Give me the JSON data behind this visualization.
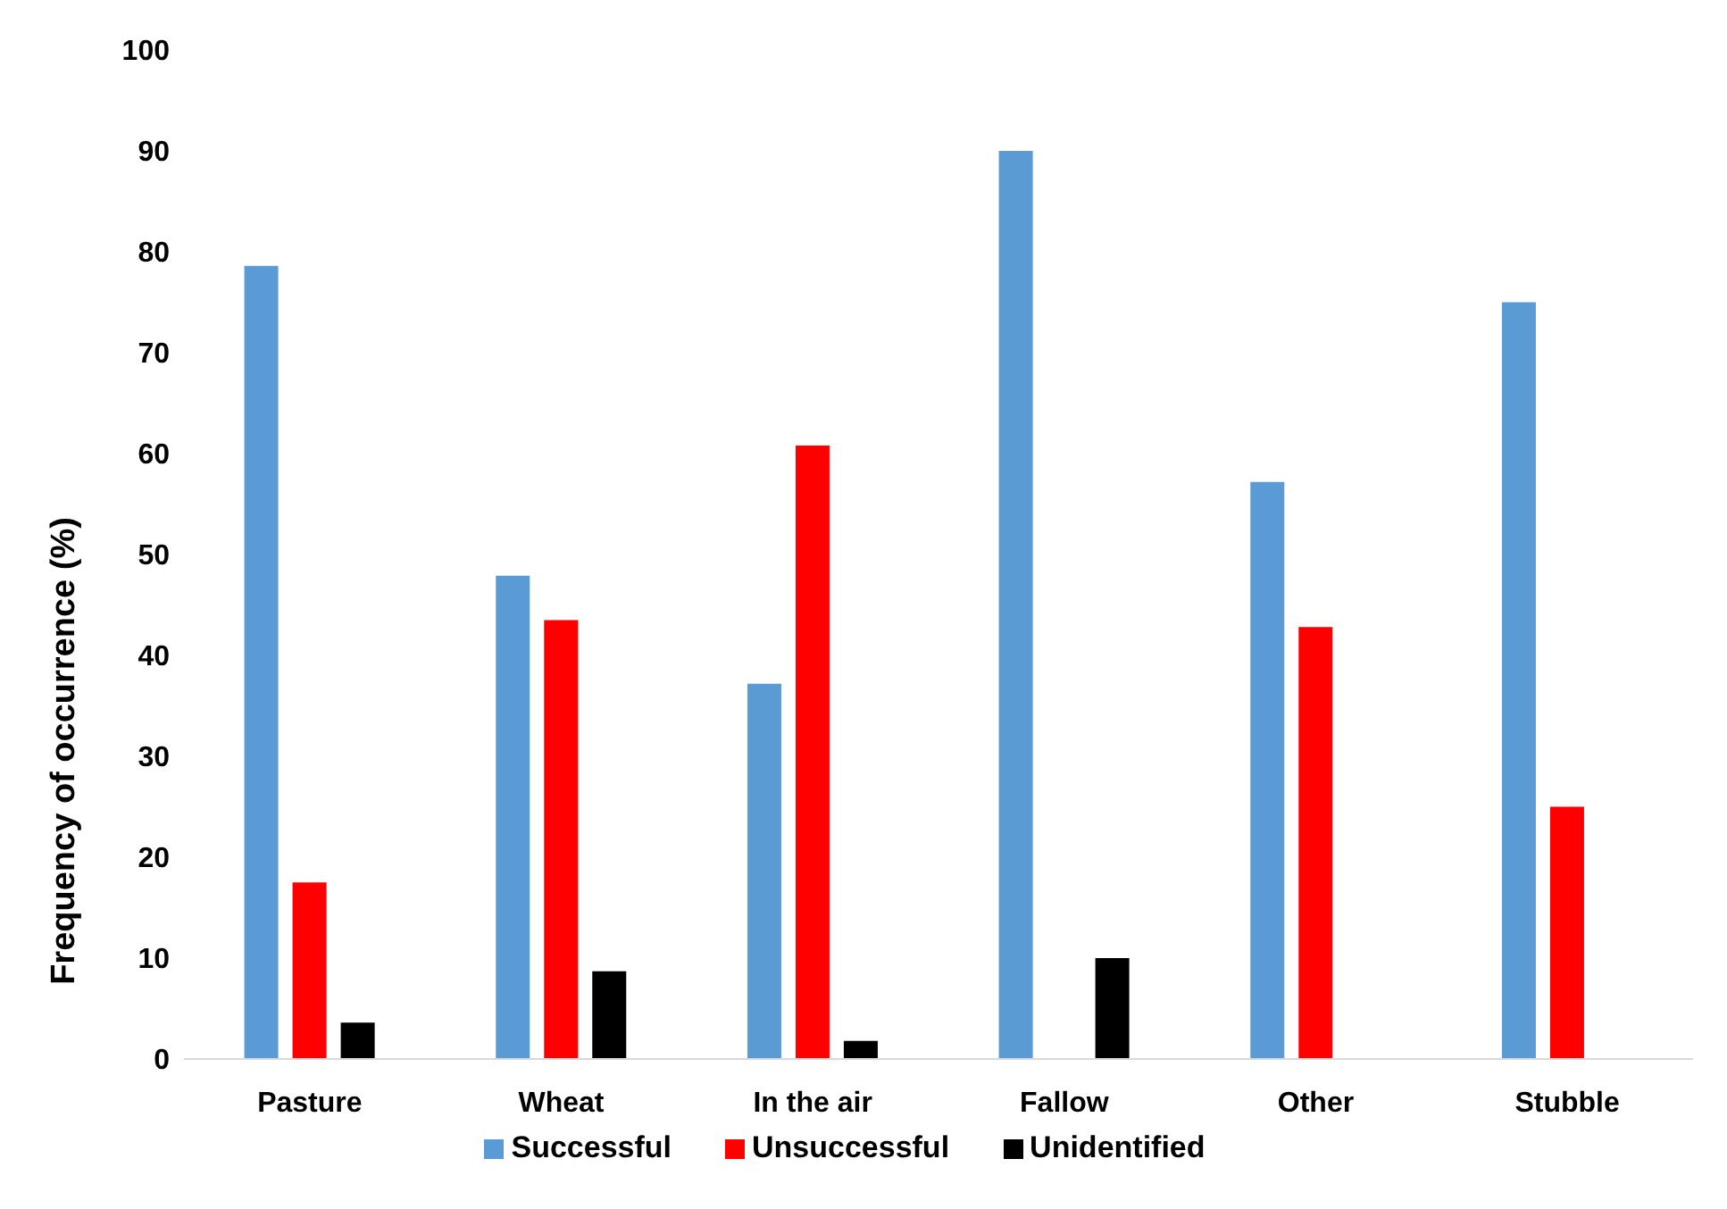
{
  "chart_data": {
    "type": "bar",
    "ylabel": "Frequency of occurrence (%)",
    "categories": [
      "Pasture",
      "Wheat",
      "In the air",
      "Fallow",
      "Other",
      "Stubble"
    ],
    "series": [
      {
        "name": "Successful",
        "color": "#5b9bd5",
        "values": [
          78.6,
          47.9,
          37.2,
          90,
          57.2,
          75
        ]
      },
      {
        "name": "Unsuccessful",
        "color": "#ff0000",
        "values": [
          17.5,
          43.5,
          60.8,
          0,
          42.8,
          25
        ]
      },
      {
        "name": "Unidentified",
        "color": "#000000",
        "values": [
          3.6,
          8.7,
          1.8,
          10,
          0,
          0
        ]
      }
    ],
    "ylim": [
      0,
      100
    ],
    "yticks": [
      0,
      10,
      20,
      30,
      40,
      50,
      60,
      70,
      80,
      90,
      100
    ],
    "grid": false,
    "legend": "bottom"
  }
}
